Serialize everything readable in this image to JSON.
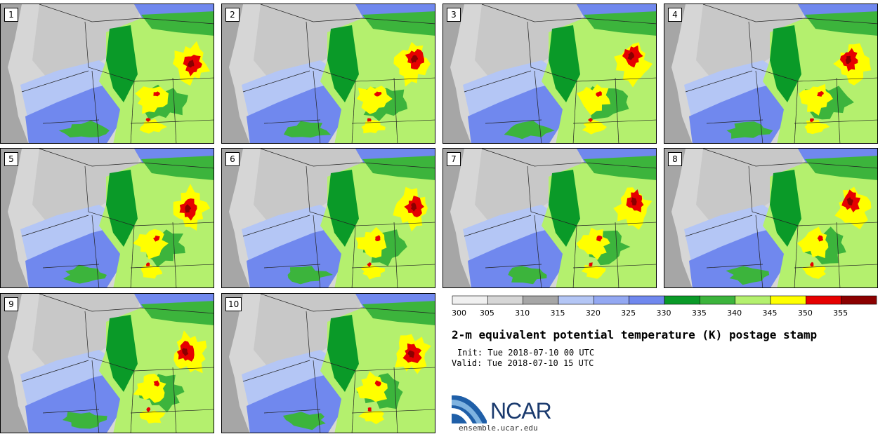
{
  "title": "2-m equivalent potential temperature (K) postage stamp",
  "init": "Init: Tue 2018-07-10 00 UTC",
  "valid": "Valid: Tue 2018-07-10 15 UTC",
  "logo": {
    "name": "NCAR",
    "site": "ensemble.ucar.edu"
  },
  "members": [
    "1",
    "2",
    "3",
    "4",
    "5",
    "6",
    "7",
    "8",
    "9",
    "10"
  ],
  "colorbar": {
    "ticks": [
      "300",
      "305",
      "310",
      "315",
      "320",
      "325",
      "330",
      "335",
      "340",
      "345",
      "350",
      "355"
    ],
    "colors": [
      "#f0f0f0",
      "#d6d6d6",
      "#a6a6a6",
      "#b4c6f5",
      "#93a8f2",
      "#7088ee",
      "#0a9a28",
      "#3cb43c",
      "#b4f06e",
      "#ffff00",
      "#e60000",
      "#8b0000"
    ]
  },
  "map_colors": {
    "ocean": "#a6a6a6",
    "coast": "#d6d6d6",
    "light_blue": "#b4c6f5",
    "mid_blue": "#93a8f2",
    "blue": "#7088ee",
    "dark_green": "#0a9a28",
    "green": "#3cb43c",
    "light_green": "#b4f06e",
    "yellow": "#ffff00",
    "red": "#e60000",
    "dark_red": "#8b0000"
  }
}
